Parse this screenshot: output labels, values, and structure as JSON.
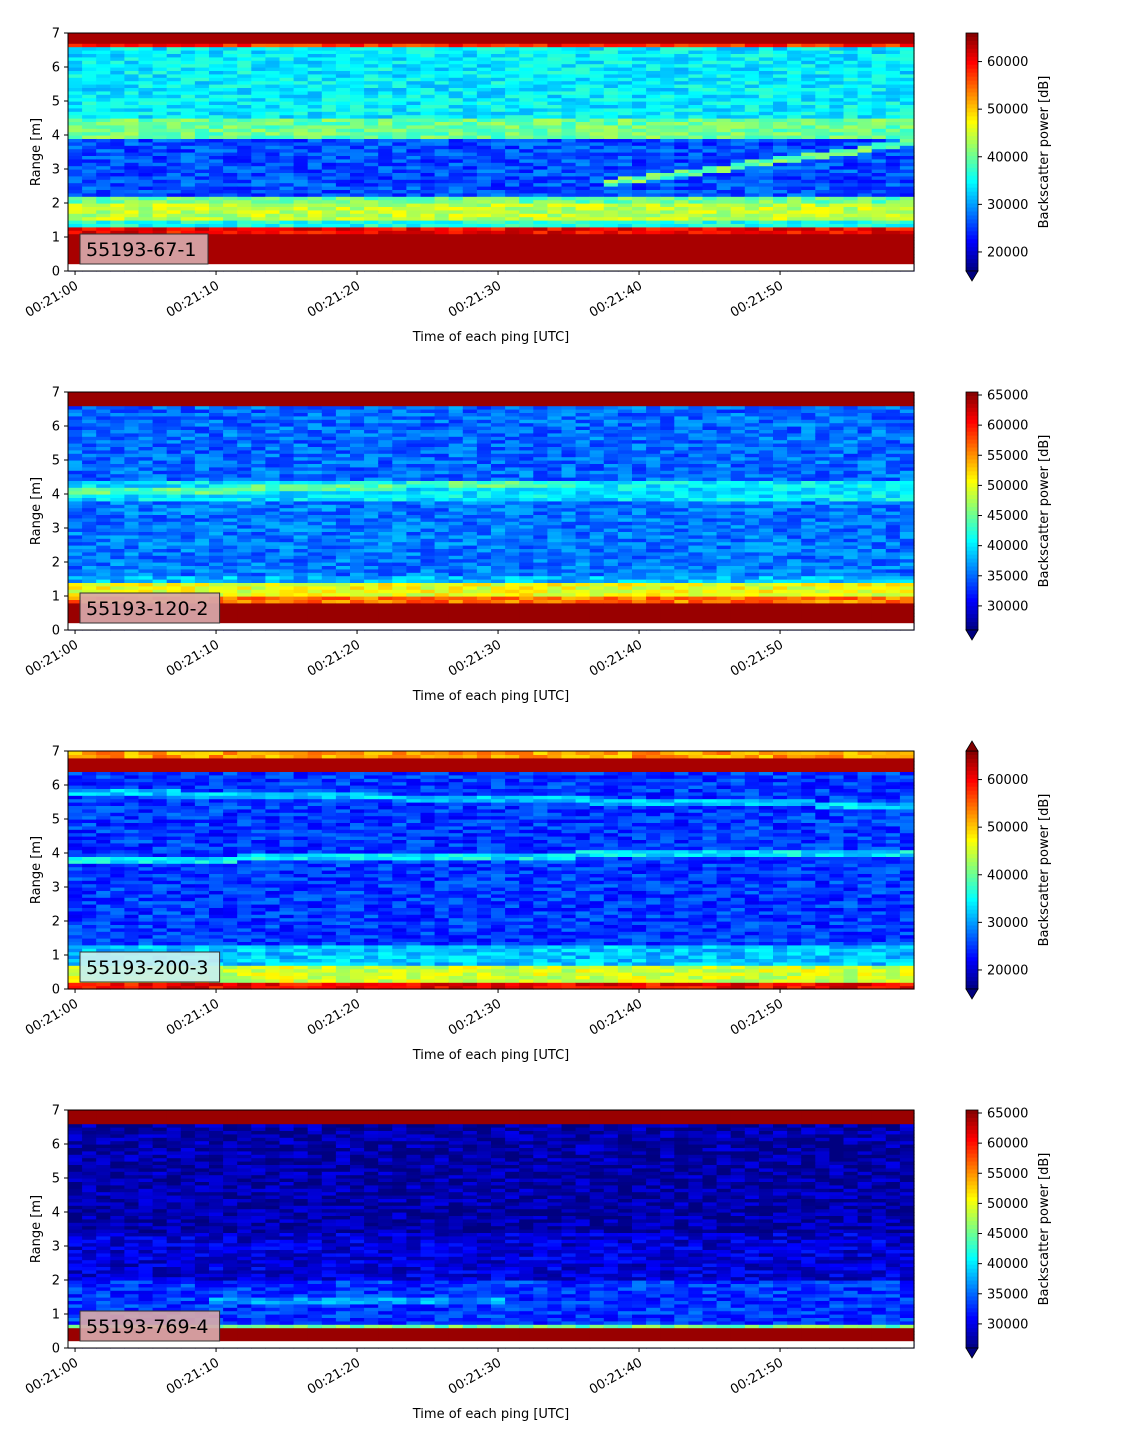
{
  "chart_data": [
    {
      "type": "heatmap",
      "label": "55193-67-1",
      "label_box_color": "#d8a8aa",
      "xlabel": "Time of each ping [UTC]",
      "ylabel": "Range [m]",
      "xticks": [
        "00:21:00",
        "00:21:10",
        "00:21:20",
        "00:21:30",
        "00:21:40",
        "00:21:50"
      ],
      "xlim_seconds": [
        -0.5,
        59.5
      ],
      "ylim": [
        0,
        7
      ],
      "yticks": [
        "0",
        "1",
        "2",
        "3",
        "4",
        "5",
        "6",
        "7"
      ],
      "colorbar_label": "Backscatter power [dB]",
      "colorbar_ticks": [
        "20000",
        "30000",
        "40000",
        "50000",
        "60000"
      ],
      "colorbar_range": [
        16000,
        66000
      ],
      "colorbar_extend": "min",
      "colormap": "jet",
      "bands": [
        {
          "y": [
            0.2,
            1.1
          ],
          "value": 64000
        },
        {
          "y": [
            1.1,
            1.3
          ],
          "value": 60000
        },
        {
          "y": [
            1.3,
            1.5
          ],
          "value": 36000
        },
        {
          "y": [
            1.5,
            2.0
          ],
          "value": 44000
        },
        {
          "y": [
            2.0,
            2.2
          ],
          "value": 40000
        },
        {
          "y": [
            2.2,
            3.9
          ],
          "value": 26000
        },
        {
          "y": [
            3.9,
            4.5
          ],
          "value": 40000
        },
        {
          "y": [
            4.5,
            6.6
          ],
          "value": 34000
        },
        {
          "y": [
            6.6,
            6.7
          ],
          "value": 58000
        },
        {
          "y": [
            6.7,
            7.0
          ],
          "value": 64000
        }
      ],
      "lines": [
        {
          "y_start": 2.6,
          "y_end": 3.8,
          "t_start": 38,
          "t_end": 59.5,
          "value": 40000
        }
      ]
    },
    {
      "type": "heatmap",
      "label": "55193-120-2",
      "label_box_color": "#d8a8aa",
      "xlabel": "Time of each ping [UTC]",
      "ylabel": "Range [m]",
      "xticks": [
        "00:21:00",
        "00:21:10",
        "00:21:20",
        "00:21:30",
        "00:21:40",
        "00:21:50"
      ],
      "xlim_seconds": [
        -0.5,
        59.5
      ],
      "ylim": [
        0,
        7
      ],
      "yticks": [
        "0",
        "1",
        "2",
        "3",
        "4",
        "5",
        "6",
        "7"
      ],
      "colorbar_label": "Backscatter power [dB]",
      "colorbar_ticks": [
        "30000",
        "35000",
        "40000",
        "45000",
        "50000",
        "55000",
        "60000",
        "65000"
      ],
      "colorbar_range": [
        26000,
        65500
      ],
      "colorbar_extend": "min",
      "colormap": "jet",
      "bands": [
        {
          "y": [
            0.2,
            0.8
          ],
          "value": 64500
        },
        {
          "y": [
            0.8,
            1.0
          ],
          "value": 56000
        },
        {
          "y": [
            1.0,
            1.4
          ],
          "value": 50000
        },
        {
          "y": [
            1.4,
            1.6
          ],
          "value": 38000
        },
        {
          "y": [
            1.6,
            3.8
          ],
          "value": 35500
        },
        {
          "y": [
            3.8,
            4.4
          ],
          "value": 40000
        },
        {
          "y": [
            4.4,
            6.6
          ],
          "value": 35000
        },
        {
          "y": [
            6.6,
            7.0
          ],
          "value": 64500
        }
      ],
      "lines": [
        {
          "y_start": 4.05,
          "y_end": 4.35,
          "t_start": -0.5,
          "t_end": 35,
          "value": 44000
        }
      ]
    },
    {
      "type": "heatmap",
      "label": "55193-200-3",
      "label_box_color": "#c8f0f0",
      "xlabel": "Time of each ping [UTC]",
      "ylabel": "Range [m]",
      "xticks": [
        "00:21:00",
        "00:21:10",
        "00:21:20",
        "00:21:30",
        "00:21:40",
        "00:21:50"
      ],
      "xlim_seconds": [
        -0.5,
        59.5
      ],
      "ylim": [
        0,
        7
      ],
      "yticks": [
        "0",
        "1",
        "2",
        "3",
        "4",
        "5",
        "6",
        "7"
      ],
      "colorbar_label": "Backscatter power [dB]",
      "colorbar_ticks": [
        "20000",
        "30000",
        "40000",
        "50000",
        "60000"
      ],
      "colorbar_range": [
        16000,
        66000
      ],
      "colorbar_extend": "both",
      "colormap": "jet",
      "bands": [
        {
          "y": [
            0.0,
            0.25
          ],
          "value": 60000
        },
        {
          "y": [
            0.25,
            0.7
          ],
          "value": 45000
        },
        {
          "y": [
            0.7,
            1.3
          ],
          "value": 32000
        },
        {
          "y": [
            1.3,
            6.4
          ],
          "value": 25000
        },
        {
          "y": [
            6.4,
            6.8
          ],
          "value": 64000
        },
        {
          "y": [
            6.8,
            7.0
          ],
          "value": 52000
        }
      ],
      "lines": [
        {
          "y_start": 3.8,
          "y_end": 4.05,
          "t_start": -0.5,
          "t_end": 59.5,
          "value": 34000
        },
        {
          "y_start": 5.8,
          "y_end": 5.4,
          "t_start": -0.5,
          "t_end": 59.5,
          "value": 32000
        }
      ]
    },
    {
      "type": "heatmap",
      "label": "55193-769-4",
      "label_box_color": "#d8a8aa",
      "xlabel": "Time of each ping [UTC]",
      "ylabel": "Range [m]",
      "xticks": [
        "00:21:00",
        "00:21:10",
        "00:21:20",
        "00:21:30",
        "00:21:40",
        "00:21:50"
      ],
      "xlim_seconds": [
        -0.5,
        59.5
      ],
      "ylim": [
        0,
        7
      ],
      "yticks": [
        "0",
        "1",
        "2",
        "3",
        "4",
        "5",
        "6",
        "7"
      ],
      "colorbar_label": "Backscatter power [dB]",
      "colorbar_ticks": [
        "30000",
        "35000",
        "40000",
        "45000",
        "50000",
        "55000",
        "60000",
        "65000"
      ],
      "colorbar_range": [
        26000,
        65500
      ],
      "colorbar_extend": "min",
      "colormap": "jet",
      "bands": [
        {
          "y": [
            0.2,
            0.65
          ],
          "value": 64500
        },
        {
          "y": [
            0.65,
            0.75
          ],
          "value": 45000
        },
        {
          "y": [
            0.75,
            2.0
          ],
          "value": 33000
        },
        {
          "y": [
            2.0,
            3.4
          ],
          "value": 29500
        },
        {
          "y": [
            3.4,
            6.6
          ],
          "value": 27500
        },
        {
          "y": [
            6.6,
            7.0
          ],
          "value": 64500
        }
      ],
      "lines": [
        {
          "y_start": 1.4,
          "y_end": 1.4,
          "t_start": 10,
          "t_end": 30,
          "value": 37000
        }
      ]
    }
  ]
}
